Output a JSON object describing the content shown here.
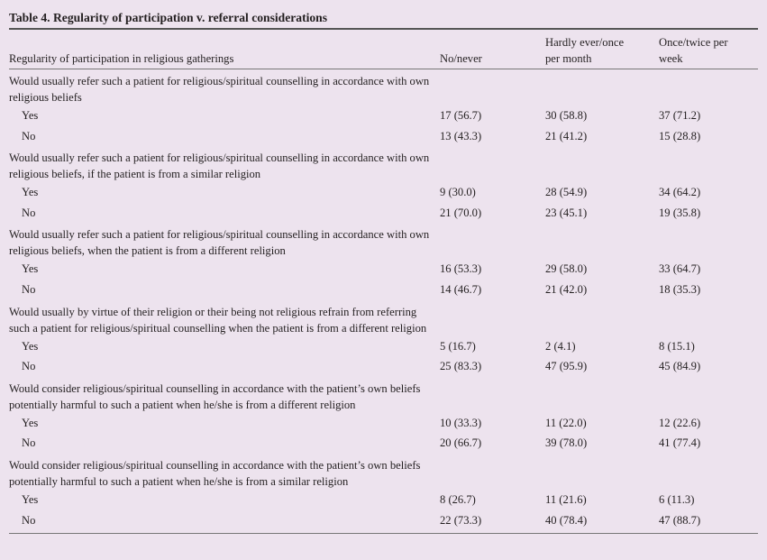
{
  "title": "Table 4. Regularity of participation v. referral considerations",
  "header": {
    "row_label": "Regularity of participation in religious gatherings",
    "columns": [
      "No/never",
      "Hardly ever/once per month",
      "Once/twice per week"
    ]
  },
  "sections": [
    {
      "question": "Would usually refer such a patient for religious/spiritual counselling in accordance with own religious beliefs",
      "rows": [
        [
          "Yes",
          "17 (56.7)",
          "30 (58.8)",
          "37 (71.2)"
        ],
        [
          "No",
          "13 (43.3)",
          "21 (41.2)",
          "15 (28.8)"
        ]
      ]
    },
    {
      "question": "Would usually refer such a patient for religious/spiritual counselling in accordance with own religious beliefs, if the patient is from a similar religion",
      "rows": [
        [
          "Yes",
          "9 (30.0)",
          "28 (54.9)",
          "34 (64.2)"
        ],
        [
          "No",
          "21 (70.0)",
          "23 (45.1)",
          "19 (35.8)"
        ]
      ]
    },
    {
      "question": "Would usually refer such a patient for religious/spiritual counselling in accordance with own religious beliefs, when the patient is from a different religion",
      "rows": [
        [
          "Yes",
          "16 (53.3)",
          "29 (58.0)",
          "33 (64.7)"
        ],
        [
          "No",
          "14 (46.7)",
          "21 (42.0)",
          "18 (35.3)"
        ]
      ]
    },
    {
      "question": "Would usually by virtue of their religion or their being not religious refrain from referring such a patient for religious/spiritual counselling when the patient is from a different religion",
      "rows": [
        [
          "Yes",
          "5 (16.7)",
          "2 (4.1)",
          "8 (15.1)"
        ],
        [
          "No",
          "25 (83.3)",
          "47 (95.9)",
          "45 (84.9)"
        ]
      ]
    },
    {
      "question": "Would consider religious/spiritual counselling in accordance with the patient’s own beliefs potentially harmful to such a patient when he/she is from a different religion",
      "rows": [
        [
          "Yes",
          "10 (33.3)",
          "11 (22.0)",
          "12 (22.6)"
        ],
        [
          "No",
          "20 (66.7)",
          "39 (78.0)",
          "41 (77.4)"
        ]
      ]
    },
    {
      "question": "Would consider religious/spiritual counselling in accordance with the patient’s own beliefs potentially harmful to such a patient when he/she is from a similar religion",
      "rows": [
        [
          "Yes",
          "8 (26.7)",
          "11 (21.6)",
          "6 (11.3)"
        ],
        [
          "No",
          "22 (73.3)",
          "40 (78.4)",
          "47 (88.7)"
        ]
      ]
    }
  ]
}
